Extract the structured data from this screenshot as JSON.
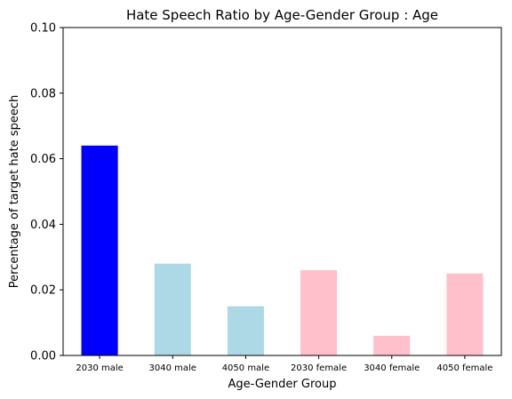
{
  "chart_data": {
    "type": "bar",
    "title": "Hate Speech Ratio by Age-Gender Group : Age",
    "xlabel": "Age-Gender Group",
    "ylabel": "Percentage of target hate speech",
    "categories": [
      "2030 male",
      "3040 male",
      "4050 male",
      "2030 female",
      "3040 female",
      "4050 female"
    ],
    "values": [
      0.064,
      0.028,
      0.015,
      0.026,
      0.006,
      0.025
    ],
    "colors": [
      "#0000ff",
      "#add8e6",
      "#add8e6",
      "#ffc0cb",
      "#ffc0cb",
      "#ffc0cb"
    ],
    "ylim": [
      0,
      0.1
    ],
    "yticks": [
      0.0,
      0.02,
      0.04,
      0.06,
      0.08,
      0.1
    ],
    "ytick_labels": [
      "0.00",
      "0.02",
      "0.04",
      "0.06",
      "0.08",
      "0.10"
    ],
    "grid": false,
    "legend": "none"
  }
}
